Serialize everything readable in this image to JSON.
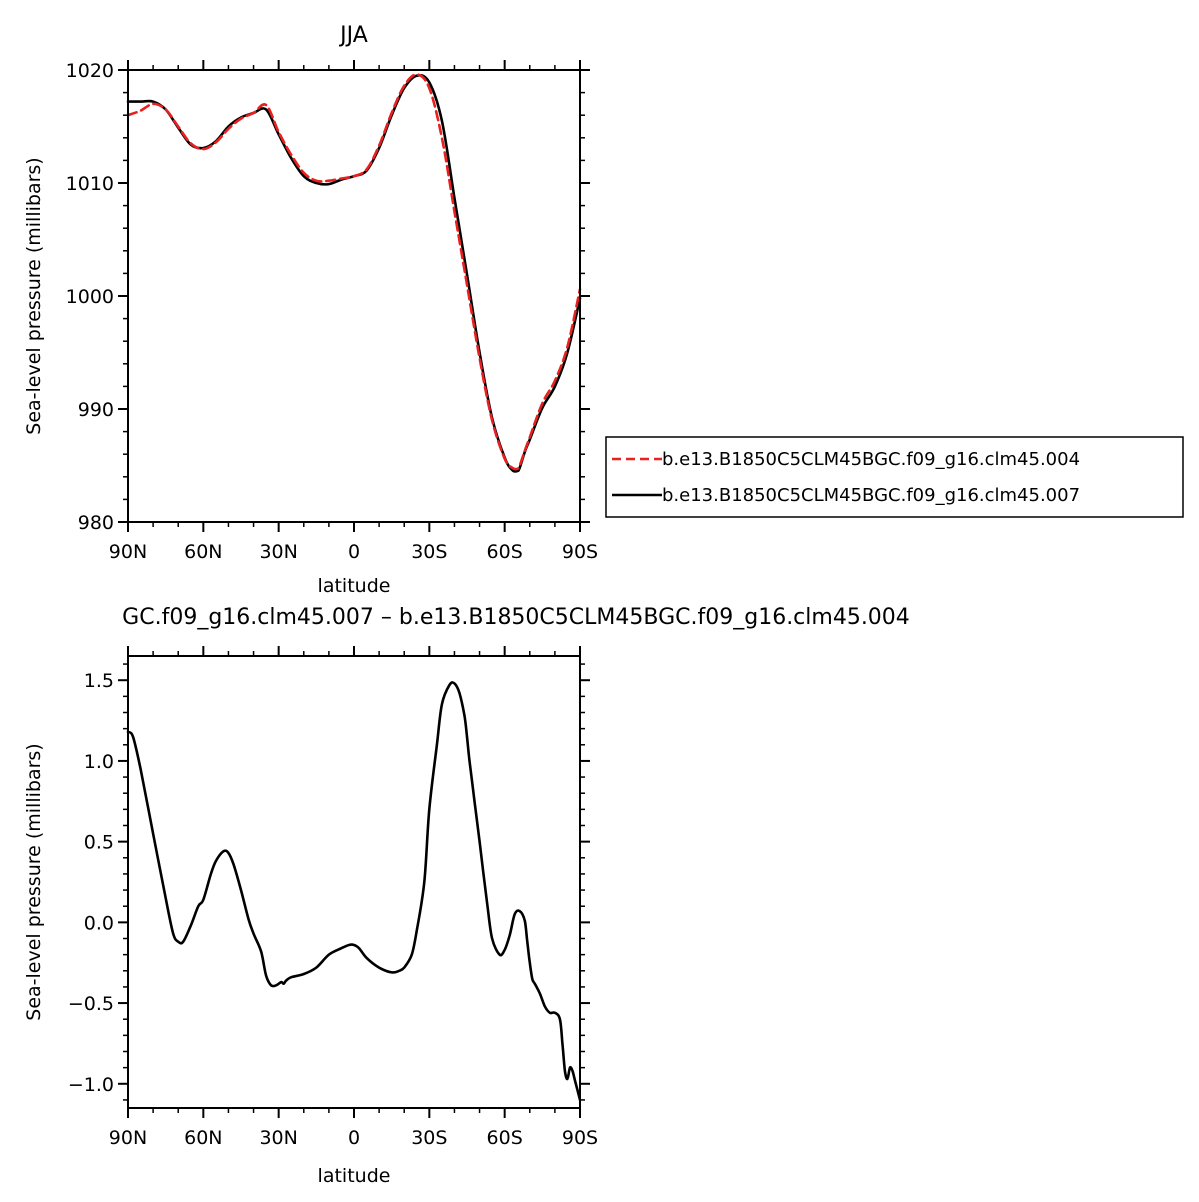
{
  "chart_data": [
    {
      "type": "line",
      "title": "JJA",
      "xlabel": "latitude",
      "ylabel": "Sea-level pressure (millibars)",
      "xlim": [
        90,
        -90
      ],
      "ylim": [
        980,
        1020
      ],
      "x_ticks": [
        {
          "value": 90,
          "label": "90N"
        },
        {
          "value": 60,
          "label": "60N"
        },
        {
          "value": 30,
          "label": "30N"
        },
        {
          "value": 0,
          "label": "0"
        },
        {
          "value": -30,
          "label": "30S"
        },
        {
          "value": -60,
          "label": "60S"
        },
        {
          "value": -90,
          "label": "90S"
        }
      ],
      "y_ticks": [
        {
          "value": 1020,
          "label": "1020"
        },
        {
          "value": 1010,
          "label": "1010"
        },
        {
          "value": 1000,
          "label": "1000"
        },
        {
          "value": 990,
          "label": "990"
        },
        {
          "value": 980,
          "label": "980"
        }
      ],
      "legend_position": "right",
      "series": [
        {
          "name": "b.e13.B1850C5CLM45BGC.f09_g16.clm45.004",
          "color": "#e8201f",
          "dash": "dashed",
          "x": [
            90,
            85,
            80,
            75,
            70,
            65,
            60,
            55,
            50,
            45,
            40,
            35,
            30,
            25,
            20,
            15,
            10,
            5,
            0,
            -5,
            -10,
            -15,
            -20,
            -25,
            -30,
            -35,
            -40,
            -45,
            -50,
            -55,
            -60,
            -63,
            -65,
            -66,
            -68,
            -70,
            -75,
            -80,
            -85,
            -90
          ],
          "y": [
            1016.0,
            1016.4,
            1017.0,
            1016.5,
            1015.0,
            1013.5,
            1013.0,
            1013.6,
            1014.8,
            1015.7,
            1016.2,
            1016.9,
            1014.5,
            1012.5,
            1010.9,
            1010.2,
            1010.2,
            1010.4,
            1010.6,
            1011.2,
            1013.3,
            1016.2,
            1018.6,
            1019.6,
            1018.4,
            1014.0,
            1007.5,
            1001.0,
            994.5,
            989.0,
            985.6,
            984.8,
            984.7,
            985.0,
            986.3,
            987.5,
            990.5,
            992.5,
            995.5,
            1000.6
          ]
        },
        {
          "name": "b.e13.B1850C5CLM45BGC.f09_g16.clm45.007",
          "color": "#000000",
          "dash": "solid",
          "x": [
            90,
            85,
            80,
            75,
            70,
            65,
            60,
            55,
            50,
            45,
            40,
            35,
            30,
            25,
            20,
            15,
            10,
            5,
            0,
            -5,
            -10,
            -15,
            -20,
            -25,
            -30,
            -35,
            -40,
            -45,
            -50,
            -55,
            -60,
            -63,
            -65,
            -66,
            -68,
            -70,
            -75,
            -80,
            -85,
            -90
          ],
          "y": [
            1017.2,
            1017.2,
            1017.2,
            1016.5,
            1014.9,
            1013.4,
            1013.1,
            1013.7,
            1015.0,
            1015.8,
            1016.2,
            1016.5,
            1014.3,
            1012.2,
            1010.6,
            1010.0,
            1009.9,
            1010.3,
            1010.6,
            1011.1,
            1013.1,
            1016.0,
            1018.4,
            1019.5,
            1018.9,
            1015.5,
            1008.7,
            1001.9,
            995.0,
            989.2,
            985.7,
            984.6,
            984.5,
            984.8,
            986.2,
            987.3,
            990.1,
            992.0,
            995.0,
            999.8
          ]
        }
      ]
    },
    {
      "type": "line",
      "title": "GC.f09_g16.clm45.007 – b.e13.B1850C5CLM45BGC.f09_g16.clm45.004",
      "xlabel": "latitude",
      "ylabel": "Sea-level pressure (millibars)",
      "xlim": [
        90,
        -90
      ],
      "ylim": [
        -1.15,
        1.65
      ],
      "x_ticks": [
        {
          "value": 90,
          "label": "90N"
        },
        {
          "value": 60,
          "label": "60N"
        },
        {
          "value": 30,
          "label": "30N"
        },
        {
          "value": 0,
          "label": "0"
        },
        {
          "value": -30,
          "label": "30S"
        },
        {
          "value": -60,
          "label": "60S"
        },
        {
          "value": -90,
          "label": "90S"
        }
      ],
      "y_ticks": [
        {
          "value": 1.5,
          "label": "1.5"
        },
        {
          "value": 1.0,
          "label": "1.0"
        },
        {
          "value": 0.5,
          "label": "0.5"
        },
        {
          "value": 0.0,
          "label": "0.0"
        },
        {
          "value": -0.5,
          "label": "−0.5"
        },
        {
          "value": -1.0,
          "label": "−1.0"
        }
      ],
      "series": [
        {
          "color": "#000000",
          "dash": "solid",
          "x": [
            90,
            88,
            85,
            80,
            75,
            72,
            70,
            68,
            65,
            62,
            60,
            57,
            55,
            52,
            50,
            48,
            45,
            42,
            40,
            37,
            35,
            33,
            31,
            29,
            28,
            27,
            25,
            20,
            15,
            10,
            5,
            2,
            0,
            -2,
            -5,
            -10,
            -15,
            -18,
            -20,
            -23,
            -25,
            -28,
            -30,
            -33,
            -35,
            -38,
            -40,
            -42,
            -44,
            -45,
            -46,
            -48,
            -50,
            -53,
            -55,
            -58,
            -60,
            -62,
            -64,
            -66,
            -68,
            -69,
            -70,
            -71,
            -72,
            -74,
            -76,
            -78,
            -80,
            -82,
            -83,
            -84,
            -85,
            -86,
            -87,
            -88,
            -89,
            -90
          ],
          "y": [
            1.18,
            1.15,
            0.95,
            0.55,
            0.15,
            -0.07,
            -0.12,
            -0.12,
            -0.02,
            0.1,
            0.14,
            0.3,
            0.38,
            0.44,
            0.43,
            0.36,
            0.2,
            0.02,
            -0.07,
            -0.18,
            -0.33,
            -0.39,
            -0.39,
            -0.37,
            -0.38,
            -0.36,
            -0.34,
            -0.32,
            -0.28,
            -0.2,
            -0.16,
            -0.14,
            -0.14,
            -0.16,
            -0.22,
            -0.28,
            -0.31,
            -0.3,
            -0.28,
            -0.2,
            -0.05,
            0.25,
            0.7,
            1.1,
            1.35,
            1.47,
            1.48,
            1.42,
            1.28,
            1.15,
            1.0,
            0.75,
            0.5,
            0.12,
            -0.1,
            -0.2,
            -0.17,
            -0.08,
            0.05,
            0.07,
            0.01,
            -0.12,
            -0.25,
            -0.35,
            -0.38,
            -0.44,
            -0.52,
            -0.56,
            -0.56,
            -0.6,
            -0.75,
            -0.92,
            -0.97,
            -0.9,
            -0.92,
            -0.98,
            -1.04,
            -1.1
          ]
        }
      ]
    }
  ]
}
